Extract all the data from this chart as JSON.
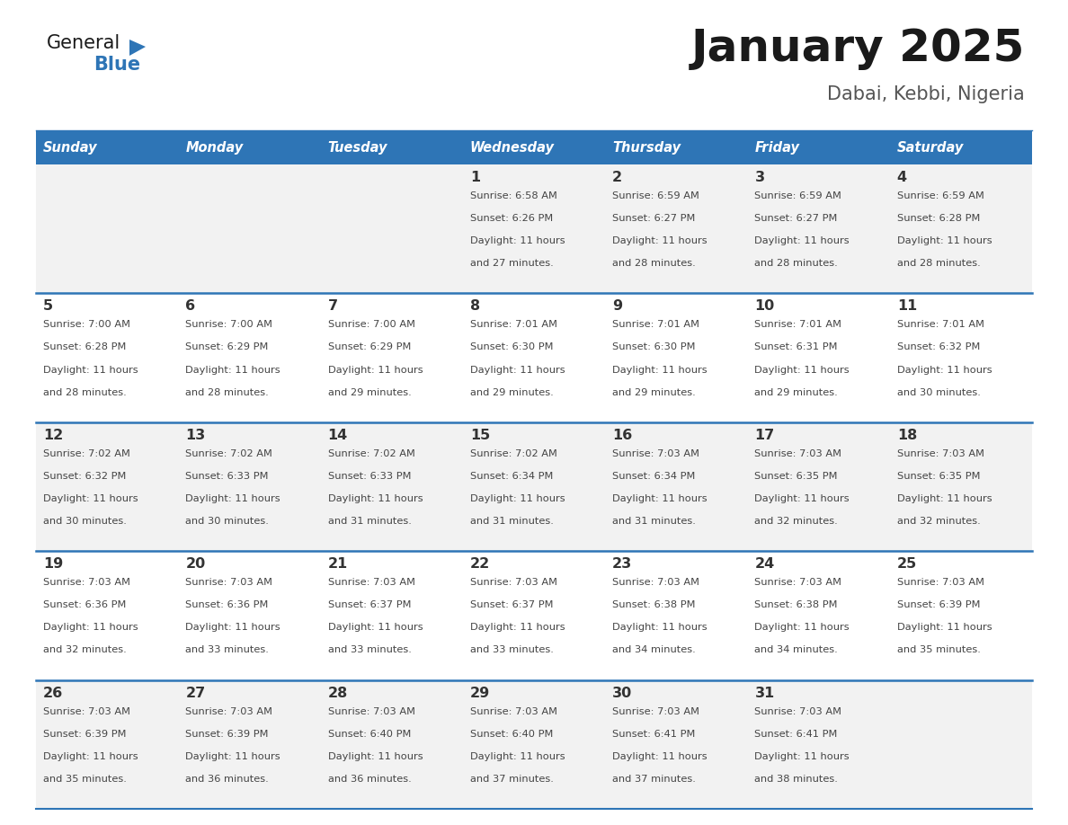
{
  "title": "January 2025",
  "subtitle": "Dabai, Kebbi, Nigeria",
  "header_bg_color": "#2E75B6",
  "header_text_color": "#FFFFFF",
  "weekdays": [
    "Sunday",
    "Monday",
    "Tuesday",
    "Wednesday",
    "Thursday",
    "Friday",
    "Saturday"
  ],
  "row_bg_even": "#FFFFFF",
  "row_bg_odd": "#F2F2F2",
  "separator_color": "#2E75B6",
  "day_text_color": "#333333",
  "info_text_color": "#444444",
  "calendar": [
    [
      {
        "day": "",
        "sunrise": "",
        "sunset": "",
        "daylight": ""
      },
      {
        "day": "",
        "sunrise": "",
        "sunset": "",
        "daylight": ""
      },
      {
        "day": "",
        "sunrise": "",
        "sunset": "",
        "daylight": ""
      },
      {
        "day": "1",
        "sunrise": "6:58 AM",
        "sunset": "6:26 PM",
        "daylight": "11 hours and 27 minutes."
      },
      {
        "day": "2",
        "sunrise": "6:59 AM",
        "sunset": "6:27 PM",
        "daylight": "11 hours and 28 minutes."
      },
      {
        "day": "3",
        "sunrise": "6:59 AM",
        "sunset": "6:27 PM",
        "daylight": "11 hours and 28 minutes."
      },
      {
        "day": "4",
        "sunrise": "6:59 AM",
        "sunset": "6:28 PM",
        "daylight": "11 hours and 28 minutes."
      }
    ],
    [
      {
        "day": "5",
        "sunrise": "7:00 AM",
        "sunset": "6:28 PM",
        "daylight": "11 hours and 28 minutes."
      },
      {
        "day": "6",
        "sunrise": "7:00 AM",
        "sunset": "6:29 PM",
        "daylight": "11 hours and 28 minutes."
      },
      {
        "day": "7",
        "sunrise": "7:00 AM",
        "sunset": "6:29 PM",
        "daylight": "11 hours and 29 minutes."
      },
      {
        "day": "8",
        "sunrise": "7:01 AM",
        "sunset": "6:30 PM",
        "daylight": "11 hours and 29 minutes."
      },
      {
        "day": "9",
        "sunrise": "7:01 AM",
        "sunset": "6:30 PM",
        "daylight": "11 hours and 29 minutes."
      },
      {
        "day": "10",
        "sunrise": "7:01 AM",
        "sunset": "6:31 PM",
        "daylight": "11 hours and 29 minutes."
      },
      {
        "day": "11",
        "sunrise": "7:01 AM",
        "sunset": "6:32 PM",
        "daylight": "11 hours and 30 minutes."
      }
    ],
    [
      {
        "day": "12",
        "sunrise": "7:02 AM",
        "sunset": "6:32 PM",
        "daylight": "11 hours and 30 minutes."
      },
      {
        "day": "13",
        "sunrise": "7:02 AM",
        "sunset": "6:33 PM",
        "daylight": "11 hours and 30 minutes."
      },
      {
        "day": "14",
        "sunrise": "7:02 AM",
        "sunset": "6:33 PM",
        "daylight": "11 hours and 31 minutes."
      },
      {
        "day": "15",
        "sunrise": "7:02 AM",
        "sunset": "6:34 PM",
        "daylight": "11 hours and 31 minutes."
      },
      {
        "day": "16",
        "sunrise": "7:03 AM",
        "sunset": "6:34 PM",
        "daylight": "11 hours and 31 minutes."
      },
      {
        "day": "17",
        "sunrise": "7:03 AM",
        "sunset": "6:35 PM",
        "daylight": "11 hours and 32 minutes."
      },
      {
        "day": "18",
        "sunrise": "7:03 AM",
        "sunset": "6:35 PM",
        "daylight": "11 hours and 32 minutes."
      }
    ],
    [
      {
        "day": "19",
        "sunrise": "7:03 AM",
        "sunset": "6:36 PM",
        "daylight": "11 hours and 32 minutes."
      },
      {
        "day": "20",
        "sunrise": "7:03 AM",
        "sunset": "6:36 PM",
        "daylight": "11 hours and 33 minutes."
      },
      {
        "day": "21",
        "sunrise": "7:03 AM",
        "sunset": "6:37 PM",
        "daylight": "11 hours and 33 minutes."
      },
      {
        "day": "22",
        "sunrise": "7:03 AM",
        "sunset": "6:37 PM",
        "daylight": "11 hours and 33 minutes."
      },
      {
        "day": "23",
        "sunrise": "7:03 AM",
        "sunset": "6:38 PM",
        "daylight": "11 hours and 34 minutes."
      },
      {
        "day": "24",
        "sunrise": "7:03 AM",
        "sunset": "6:38 PM",
        "daylight": "11 hours and 34 minutes."
      },
      {
        "day": "25",
        "sunrise": "7:03 AM",
        "sunset": "6:39 PM",
        "daylight": "11 hours and 35 minutes."
      }
    ],
    [
      {
        "day": "26",
        "sunrise": "7:03 AM",
        "sunset": "6:39 PM",
        "daylight": "11 hours and 35 minutes."
      },
      {
        "day": "27",
        "sunrise": "7:03 AM",
        "sunset": "6:39 PM",
        "daylight": "11 hours and 36 minutes."
      },
      {
        "day": "28",
        "sunrise": "7:03 AM",
        "sunset": "6:40 PM",
        "daylight": "11 hours and 36 minutes."
      },
      {
        "day": "29",
        "sunrise": "7:03 AM",
        "sunset": "6:40 PM",
        "daylight": "11 hours and 37 minutes."
      },
      {
        "day": "30",
        "sunrise": "7:03 AM",
        "sunset": "6:41 PM",
        "daylight": "11 hours and 37 minutes."
      },
      {
        "day": "31",
        "sunrise": "7:03 AM",
        "sunset": "6:41 PM",
        "daylight": "11 hours and 38 minutes."
      },
      {
        "day": "",
        "sunrise": "",
        "sunset": "",
        "daylight": ""
      }
    ]
  ],
  "logo_general_color": "#1a1a1a",
  "logo_blue_color": "#2E75B6",
  "title_color": "#1a1a1a",
  "subtitle_color": "#555555",
  "fig_width": 11.88,
  "fig_height": 9.18,
  "dpi": 100
}
